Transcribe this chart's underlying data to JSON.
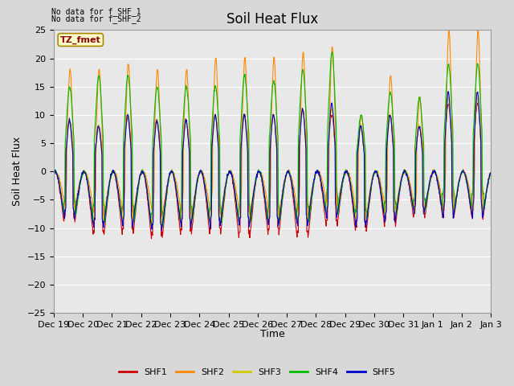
{
  "title": "Soil Heat Flux",
  "ylabel": "Soil Heat Flux",
  "xlabel": "Time",
  "ylim": [
    -25,
    25
  ],
  "yticks": [
    -25,
    -20,
    -15,
    -10,
    -5,
    0,
    5,
    10,
    15,
    20,
    25
  ],
  "xtick_labels": [
    "Dec 19",
    "Dec 20",
    "Dec 21",
    "Dec 22",
    "Dec 23",
    "Dec 24",
    "Dec 25",
    "Dec 26",
    "Dec 27",
    "Dec 28",
    "Dec 29",
    "Dec 30",
    "Dec 31",
    "Jan 1",
    "Jan 2",
    "Jan 3"
  ],
  "no_data_text": [
    "No data for f_SHF_1",
    "No data for f_SHF_2"
  ],
  "box_label": "TZ_fmet",
  "legend_labels": [
    "SHF1",
    "SHF2",
    "SHF3",
    "SHF4",
    "SHF5"
  ],
  "line_colors": [
    "#cc0000",
    "#ff8800",
    "#cccc00",
    "#00bb00",
    "#0000cc"
  ],
  "background_color": "#e8e8e8",
  "fig_background": "#d8d8d8",
  "grid_color": "#ffffff",
  "title_fontsize": 12,
  "axis_label_fontsize": 9,
  "tick_fontsize": 8
}
